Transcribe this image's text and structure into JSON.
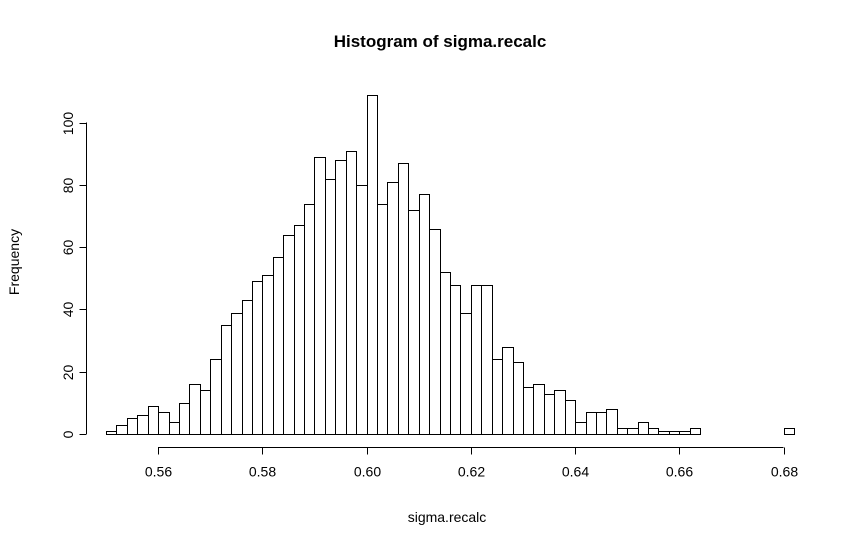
{
  "chart_data": {
    "type": "bar",
    "title": "Histogram of sigma.recalc",
    "xlabel": "sigma.recalc",
    "ylabel": "Frequency",
    "bin_start": 0.55,
    "bin_width": 0.002,
    "counts": [
      1,
      3,
      5,
      6,
      9,
      7,
      4,
      10,
      16,
      14,
      24,
      35,
      39,
      43,
      49,
      51,
      57,
      64,
      67,
      74,
      89,
      82,
      88,
      91,
      80,
      109,
      74,
      81,
      87,
      72,
      77,
      66,
      52,
      48,
      39,
      48,
      48,
      24,
      28,
      23,
      15,
      16,
      13,
      14,
      11,
      4,
      7,
      7,
      8,
      2,
      2,
      4,
      2,
      1,
      1,
      1,
      2,
      0,
      0,
      0,
      0,
      0,
      0,
      0,
      0,
      2
    ],
    "xlim": [
      0.55,
      0.682
    ],
    "ylim": [
      0,
      110
    ],
    "x_ticks": [
      0.56,
      0.58,
      0.6,
      0.62,
      0.64,
      0.66,
      0.68
    ],
    "x_tick_labels": [
      "0.56",
      "0.58",
      "0.60",
      "0.62",
      "0.64",
      "0.66",
      "0.68"
    ],
    "y_ticks": [
      0,
      20,
      40,
      60,
      80,
      100
    ],
    "y_tick_labels": [
      "0",
      "20",
      "40",
      "60",
      "80",
      "100"
    ],
    "grid": false,
    "legend": "none"
  }
}
